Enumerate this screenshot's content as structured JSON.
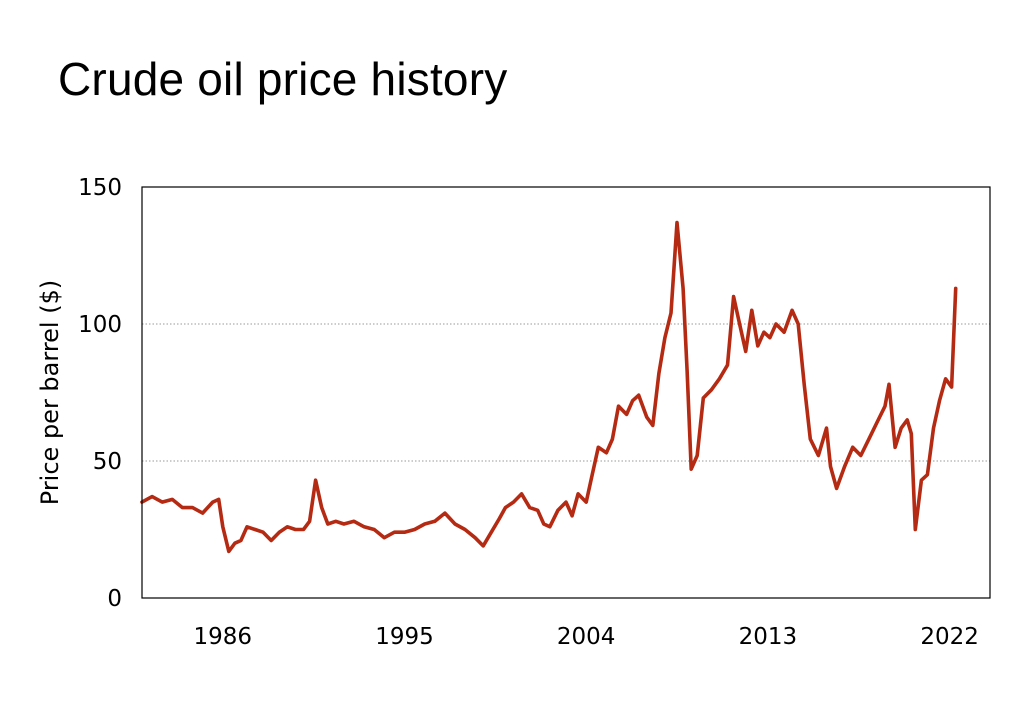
{
  "chart_data": {
    "type": "line",
    "title": "Crude oil price history",
    "xlabel": "",
    "ylabel": "Price per barrel ($)",
    "xlim": [
      1982,
      2024
    ],
    "ylim": [
      0,
      150
    ],
    "x_ticks": [
      1986,
      1995,
      2004,
      2013,
      2022
    ],
    "y_ticks": [
      0,
      50,
      100,
      150
    ],
    "grid": {
      "x": false,
      "y": true
    },
    "legend": "none",
    "colors": {
      "line": "#b52a12",
      "grid": "#999999",
      "frame": "#000000"
    },
    "series": [
      {
        "x": [
          1982.0,
          1982.5,
          1983.0,
          1983.5,
          1984.0,
          1984.5,
          1985.0,
          1985.5,
          1985.8,
          1986.0,
          1986.3,
          1986.6,
          1986.9,
          1987.2,
          1987.6,
          1988.0,
          1988.4,
          1988.8,
          1989.2,
          1989.6,
          1990.0,
          1990.3,
          1990.6,
          1990.9,
          1991.2,
          1991.6,
          1992.0,
          1992.5,
          1993.0,
          1993.5,
          1994.0,
          1994.5,
          1995.0,
          1995.5,
          1996.0,
          1996.5,
          1997.0,
          1997.5,
          1998.0,
          1998.5,
          1998.9,
          1999.3,
          1999.7,
          2000.0,
          2000.4,
          2000.8,
          2001.2,
          2001.6,
          2001.9,
          2002.2,
          2002.6,
          2003.0,
          2003.3,
          2003.6,
          2004.0,
          2004.3,
          2004.6,
          2005.0,
          2005.3,
          2005.6,
          2006.0,
          2006.3,
          2006.6,
          2007.0,
          2007.3,
          2007.6,
          2007.9,
          2008.2,
          2008.5,
          2008.8,
          2009.0,
          2009.2,
          2009.5,
          2009.8,
          2010.2,
          2010.6,
          2011.0,
          2011.3,
          2011.6,
          2011.9,
          2012.2,
          2012.5,
          2012.8,
          2013.1,
          2013.4,
          2013.8,
          2014.2,
          2014.5,
          2014.8,
          2015.1,
          2015.5,
          2015.9,
          2016.1,
          2016.4,
          2016.8,
          2017.2,
          2017.6,
          2018.0,
          2018.4,
          2018.8,
          2019.0,
          2019.3,
          2019.6,
          2019.9,
          2020.1,
          2020.3,
          2020.6,
          2020.9,
          2021.2,
          2021.5,
          2021.8,
          2022.1,
          2022.3
        ],
        "y": [
          35,
          37,
          35,
          36,
          33,
          33,
          31,
          35,
          36,
          26,
          17,
          20,
          21,
          26,
          25,
          24,
          21,
          24,
          26,
          25,
          25,
          28,
          43,
          33,
          27,
          28,
          27,
          28,
          26,
          25,
          22,
          24,
          24,
          25,
          27,
          28,
          31,
          27,
          25,
          22,
          19,
          24,
          29,
          33,
          35,
          38,
          33,
          32,
          27,
          26,
          32,
          35,
          30,
          38,
          35,
          45,
          55,
          53,
          58,
          70,
          67,
          72,
          74,
          66,
          63,
          82,
          95,
          104,
          137,
          113,
          83,
          47,
          52,
          73,
          76,
          80,
          85,
          110,
          100,
          90,
          105,
          92,
          97,
          95,
          100,
          97,
          105,
          100,
          78,
          58,
          52,
          62,
          48,
          40,
          48,
          55,
          52,
          58,
          64,
          70,
          78,
          55,
          62,
          65,
          60,
          25,
          43,
          45,
          62,
          72,
          80,
          77,
          113
        ]
      }
    ]
  }
}
